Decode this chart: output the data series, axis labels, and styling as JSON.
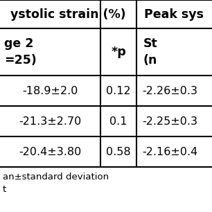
{
  "header1_col1": "ystolic strain (%)",
  "header1_col2": "Peak sys",
  "header2_col1_line1": "ge 2",
  "header2_col1_line2": "=25)",
  "header2_col2": "*p",
  "header2_col3_line1": "St",
  "header2_col3_line2": "(n",
  "rows": [
    [
      "-18.9±2.0",
      "0.12",
      "-2.26±0.3"
    ],
    [
      "-21.3±2.70",
      "0.1",
      "-2.25±0.3"
    ],
    [
      "-20.4±3.80",
      "0.58",
      "-2.16±0.4"
    ]
  ],
  "footnote1": "an±standard deviation",
  "footnote2": "t",
  "bg_color": "#ffffff",
  "border_color": "#000000",
  "text_color": "#000000",
  "font_size": 11.5,
  "header_font_size": 12.5
}
